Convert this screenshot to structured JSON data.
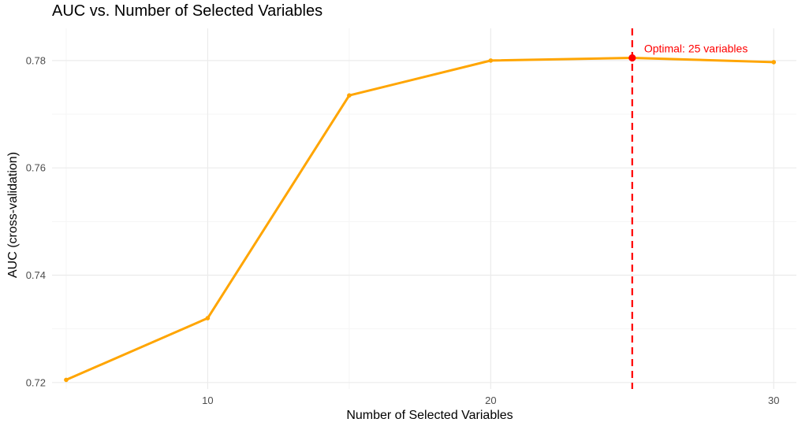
{
  "chart_data": {
    "type": "line",
    "title": "AUC vs. Number of Selected Variables",
    "xlabel": "Number of Selected Variables",
    "ylabel": "AUC (cross-validation)",
    "x": [
      5,
      10,
      15,
      20,
      25,
      30
    ],
    "series": [
      {
        "values": [
          0.7205,
          0.732,
          0.7735,
          0.78,
          0.7805,
          0.7797
        ]
      }
    ],
    "xlim": [
      4.5,
      30.8
    ],
    "ylim": [
      0.7188,
      0.786
    ],
    "x_ticks": [
      10,
      20,
      30
    ],
    "x_tick_labels": [
      "10",
      "20",
      "30"
    ],
    "x_minor_ticks": [
      5,
      15,
      25
    ],
    "y_ticks": [
      0.72,
      0.74,
      0.76,
      0.78
    ],
    "y_tick_labels": [
      "0.72",
      "0.74",
      "0.76",
      "0.78"
    ],
    "y_minor_ticks": [
      0.73,
      0.75,
      0.77
    ],
    "grid": true,
    "colors": {
      "line": "#FFA500",
      "optimal": "#FF0000",
      "grid_major": "#EBEBEB",
      "grid_minor": "#F5F5F5"
    },
    "optimal": {
      "x": 25,
      "y": 0.7805,
      "label": "Optimal: 25 variables"
    }
  }
}
